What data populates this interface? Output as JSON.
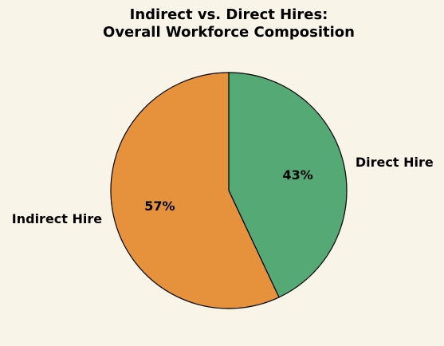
{
  "chart_data": {
    "type": "pie",
    "title_lines": [
      "Indirect vs. Direct Hires:",
      "Overall Workforce Composition"
    ],
    "slices": [
      {
        "label": "Direct Hire",
        "value": 43,
        "pct_label": "43%",
        "color": "#55a974"
      },
      {
        "label": "Indirect Hire",
        "value": 57,
        "pct_label": "57%",
        "color": "#e6923c"
      }
    ],
    "start_angle_deg": 90,
    "direction": "clockwise",
    "edge_color": "#000000"
  }
}
